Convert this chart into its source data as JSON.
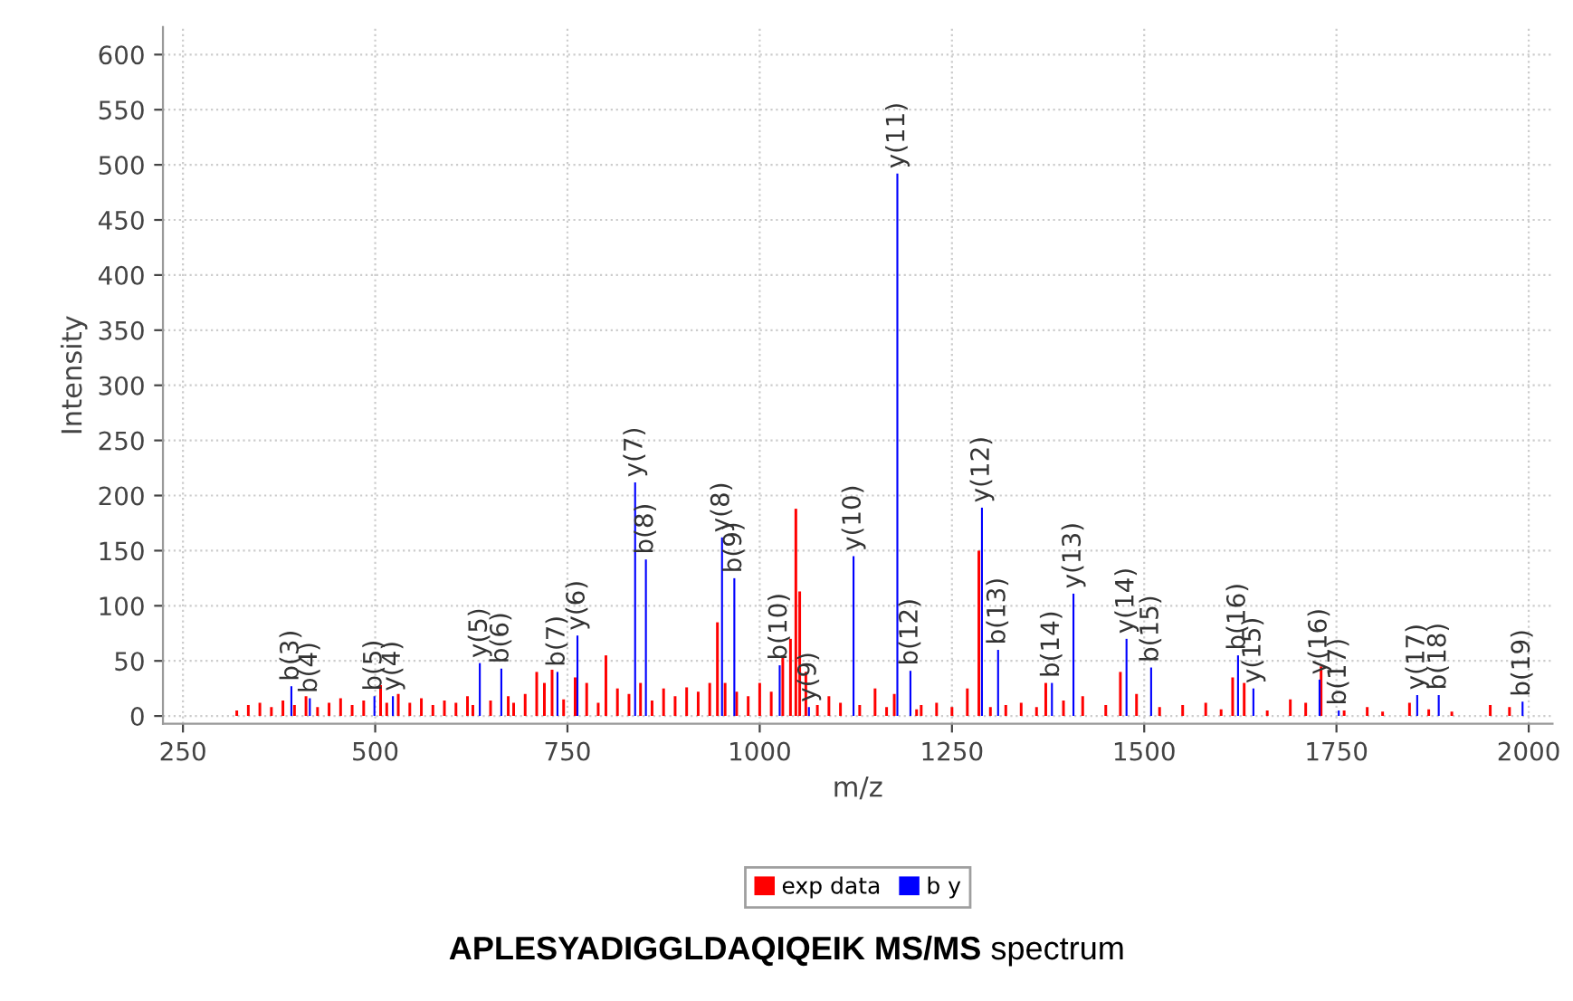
{
  "chart_data": {
    "type": "bar",
    "title": "APLESYADIGGLDAQIQEIK MS/MS spectrum",
    "xlabel": "m/z",
    "ylabel": "Intensity",
    "xlim": [
      224,
      2031
    ],
    "xticks": [
      250,
      500,
      750,
      1000,
      1250,
      1500,
      1750,
      2000
    ],
    "ylim": [
      -7,
      625
    ],
    "yticks": [
      0,
      50,
      100,
      150,
      200,
      250,
      300,
      350,
      400,
      450,
      500,
      550,
      600
    ],
    "grid": true,
    "legend": "bottom",
    "series": [
      {
        "name": "exp data",
        "color": "#ff0000",
        "x": [
          320,
          335,
          350,
          365,
          380,
          395,
          410,
          425,
          440,
          455,
          470,
          485,
          507,
          515,
          530,
          545,
          560,
          575,
          590,
          605,
          620,
          627,
          650,
          673,
          680,
          695,
          710,
          720,
          730,
          745,
          760,
          775,
          790,
          800,
          815,
          830,
          845,
          860,
          875,
          890,
          905,
          920,
          935,
          945,
          955,
          970,
          985,
          1000,
          1015,
          1030,
          1040,
          1047,
          1052,
          1060,
          1075,
          1090,
          1105,
          1130,
          1150,
          1165,
          1175,
          1204,
          1210,
          1230,
          1250,
          1270,
          1285,
          1300,
          1320,
          1340,
          1360,
          1372,
          1395,
          1420,
          1450,
          1469,
          1490,
          1520,
          1550,
          1580,
          1600,
          1615,
          1630,
          1660,
          1690,
          1710,
          1730,
          1760,
          1790,
          1810,
          1845,
          1870,
          1900,
          1950,
          1975
        ],
        "values": [
          5,
          10,
          12,
          8,
          14,
          10,
          18,
          8,
          12,
          16,
          10,
          14,
          28,
          12,
          20,
          12,
          16,
          10,
          14,
          12,
          18,
          10,
          14,
          18,
          12,
          20,
          40,
          30,
          42,
          15,
          35,
          30,
          12,
          55,
          25,
          20,
          30,
          14,
          25,
          18,
          26,
          22,
          30,
          85,
          30,
          22,
          18,
          30,
          22,
          55,
          70,
          188,
          113,
          40,
          10,
          18,
          12,
          10,
          25,
          8,
          20,
          6,
          10,
          12,
          8,
          25,
          150,
          8,
          10,
          12,
          8,
          30,
          14,
          18,
          10,
          40,
          20,
          8,
          10,
          12,
          6,
          35,
          30,
          5,
          15,
          12,
          45,
          5,
          8,
          4,
          12,
          6,
          4,
          10,
          8
        ]
      },
      {
        "name": "b y",
        "color": "#0000ff",
        "x": [
          391,
          415,
          499,
          523,
          636,
          664,
          737,
          763,
          838,
          852,
          951,
          967,
          1026,
          1064,
          1122,
          1179,
          1196,
          1289,
          1310,
          1380,
          1408,
          1477,
          1509,
          1622,
          1642,
          1728,
          1753,
          1855,
          1883,
          1992
        ],
        "values": [
          27,
          16,
          18,
          18,
          48,
          43,
          40,
          73,
          212,
          142,
          162,
          125,
          46,
          8,
          145,
          492,
          41,
          189,
          60,
          30,
          111,
          70,
          44,
          55,
          25,
          33,
          5,
          19,
          19,
          13
        ]
      }
    ],
    "annotations": [
      {
        "text": "b(3)",
        "x": 391,
        "y": 27
      },
      {
        "text": "b(4)",
        "x": 415,
        "y": 16
      },
      {
        "text": "b(5)",
        "x": 499,
        "y": 18
      },
      {
        "text": "y(4)",
        "x": 523,
        "y": 18
      },
      {
        "text": "y(5)",
        "x": 636,
        "y": 48
      },
      {
        "text": "b(6)",
        "x": 664,
        "y": 43
      },
      {
        "text": "b(7)",
        "x": 737,
        "y": 40
      },
      {
        "text": "y(6)",
        "x": 763,
        "y": 73
      },
      {
        "text": "y(7)",
        "x": 838,
        "y": 212
      },
      {
        "text": "b(8)",
        "x": 852,
        "y": 142
      },
      {
        "text": "y(8)",
        "x": 951,
        "y": 162
      },
      {
        "text": "b(9)",
        "x": 967,
        "y": 125
      },
      {
        "text": "b(10)",
        "x": 1026,
        "y": 46
      },
      {
        "text": "y(9)",
        "x": 1064,
        "y": 8
      },
      {
        "text": "y(10)",
        "x": 1122,
        "y": 145
      },
      {
        "text": "y(11)",
        "x": 1179,
        "y": 492
      },
      {
        "text": "b(12)",
        "x": 1196,
        "y": 41
      },
      {
        "text": "y(12)",
        "x": 1289,
        "y": 189
      },
      {
        "text": "b(13)",
        "x": 1310,
        "y": 60
      },
      {
        "text": "b(14)",
        "x": 1380,
        "y": 30
      },
      {
        "text": "y(13)",
        "x": 1408,
        "y": 111
      },
      {
        "text": "y(14)",
        "x": 1477,
        "y": 70
      },
      {
        "text": "b(15)",
        "x": 1509,
        "y": 44
      },
      {
        "text": "b(16)",
        "x": 1622,
        "y": 55
      },
      {
        "text": "y(15)",
        "x": 1642,
        "y": 25
      },
      {
        "text": "y(16)",
        "x": 1728,
        "y": 33
      },
      {
        "text": "b(17)",
        "x": 1753,
        "y": 5
      },
      {
        "text": "y(17)",
        "x": 1855,
        "y": 19
      },
      {
        "text": "b(18)",
        "x": 1883,
        "y": 19
      },
      {
        "text": "b(19)",
        "x": 1992,
        "y": 13
      }
    ]
  }
}
